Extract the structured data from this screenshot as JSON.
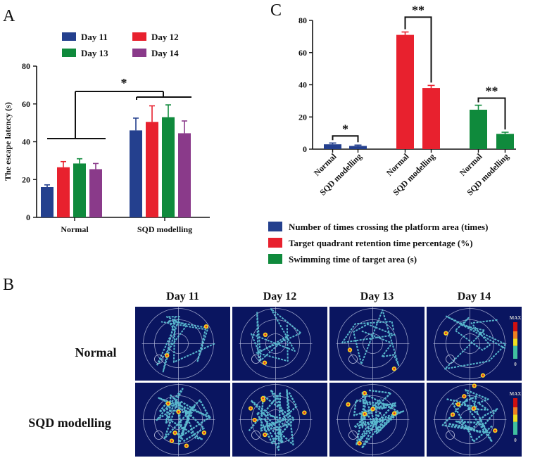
{
  "panel_labels": {
    "a": "A",
    "b": "B",
    "c": "C"
  },
  "chart_data": [
    {
      "id": "A",
      "type": "bar",
      "ylabel": "The escape latency (s)",
      "xlabel": "",
      "ylim": [
        0,
        80
      ],
      "yticks": [
        0,
        20,
        40,
        60,
        80
      ],
      "categories": [
        "Normal",
        "SQD modelling"
      ],
      "series": [
        {
          "name": "Day 11",
          "color": "#24408e",
          "values": [
            16,
            46
          ],
          "errors": [
            1.2,
            6.5
          ]
        },
        {
          "name": "Day 12",
          "color": "#e8212e",
          "values": [
            26.5,
            50.5
          ],
          "errors": [
            3.0,
            8.5
          ]
        },
        {
          "name": "Day 13",
          "color": "#0f8a3c",
          "values": [
            28.5,
            53
          ],
          "errors": [
            2.5,
            6.5
          ]
        },
        {
          "name": "Day 14",
          "color": "#8a3a8a",
          "values": [
            25.5,
            44.5
          ],
          "errors": [
            3.0,
            6.5
          ]
        }
      ],
      "legend_position": "top",
      "significance": "*"
    },
    {
      "id": "C",
      "type": "bar",
      "ylim": [
        0,
        80
      ],
      "yticks": [
        0,
        20,
        40,
        60,
        80
      ],
      "series": [
        {
          "name": "Number of times crossing the platform area (times)",
          "color": "#24408e",
          "categories": [
            "Normal",
            "SQD modelling"
          ],
          "values": [
            3,
            2
          ],
          "errors": [
            0.8,
            0.5
          ],
          "significance": "*"
        },
        {
          "name": "Target quadrant retention time percentage (%)",
          "color": "#e8212e",
          "categories": [
            "Normal",
            "SQD modelling"
          ],
          "values": [
            71,
            38
          ],
          "errors": [
            1.8,
            1.6
          ],
          "significance": "**"
        },
        {
          "name": "Swimming time of target area (s)",
          "color": "#0f8a3c",
          "categories": [
            "Normal",
            "SQD modelling"
          ],
          "values": [
            24.5,
            9.5
          ],
          "errors": [
            2.8,
            1.0
          ],
          "significance": "**"
        }
      ],
      "legend_position": "bottom"
    }
  ],
  "panel_b": {
    "days": [
      "Day 11",
      "Day 12",
      "Day 13",
      "Day 14"
    ],
    "rows": [
      "Normal",
      "SQD modelling"
    ],
    "colorbar": {
      "max": "MAX",
      "min": "0"
    }
  }
}
